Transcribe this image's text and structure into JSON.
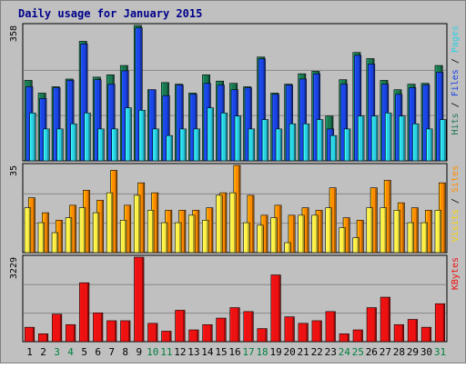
{
  "chart_data": {
    "type": "bar",
    "title": "Daily usage for January 2015",
    "categories": [
      "1",
      "2",
      "3",
      "4",
      "5",
      "6",
      "7",
      "8",
      "9",
      "10",
      "11",
      "12",
      "13",
      "14",
      "15",
      "16",
      "17",
      "18",
      "19",
      "20",
      "21",
      "22",
      "23",
      "24",
      "25",
      "26",
      "27",
      "28",
      "29",
      "30",
      "31"
    ],
    "weekend_days": [
      "3",
      "4",
      "10",
      "11",
      "17",
      "18",
      "24",
      "25",
      "31"
    ],
    "log_scale_top": true,
    "panels": [
      {
        "name": "hits-files-pages",
        "max_label": "358",
        "ylim": [
          0,
          358
        ],
        "series": [
          {
            "name": "Hits",
            "color": "#1a7850",
            "values": [
              32,
              18,
              24,
              34,
              179,
              37,
              41,
              62,
              358,
              21,
              29,
              27,
              18,
              41,
              31,
              28,
              24,
              90,
              18,
              27,
              43,
              48,
              6,
              33,
              110,
              84,
              32,
              21,
              27,
              28,
              62
            ]
          },
          {
            "name": "Files",
            "color": "#1a44e6",
            "values": [
              24,
              14,
              23,
              32,
              160,
              33,
              27,
              49,
              323,
              21,
              16,
              26,
              17,
              28,
              26,
              21,
              23,
              83,
              17,
              26,
              34,
              43,
              3,
              27,
              97,
              66,
              27,
              17,
              23,
              26,
              46
            ]
          },
          {
            "name": "Pages",
            "color": "#2ad0e4",
            "values": [
              7,
              3,
              3,
              4,
              7,
              3,
              3,
              9,
              8,
              3,
              2,
              3,
              3,
              9,
              7,
              6,
              3,
              5,
              3,
              4,
              4,
              5,
              2,
              3,
              6,
              6,
              7,
              6,
              4,
              3,
              5
            ]
          }
        ]
      },
      {
        "name": "visits-sites",
        "max_label": "35",
        "ylim": [
          0,
          35
        ],
        "series": [
          {
            "name": "Visits",
            "color": "#ff8c00",
            "values": [
              22,
              16,
              13,
              19,
              25,
              21,
              33,
              19,
              28,
              24,
              17,
              17,
              17,
              18,
              24,
              35,
              23,
              15,
              19,
              15,
              18,
              17,
              26,
              14,
              13,
              26,
              29,
              20,
              18,
              17,
              28
            ]
          },
          {
            "name": "Sites",
            "color": "#ffee44",
            "values": [
              18,
              12,
              8,
              14,
              18,
              16,
              24,
              13,
              23,
              17,
              12,
              12,
              15,
              13,
              23,
              24,
              12,
              11,
              14,
              4,
              15,
              15,
              18,
              10,
              6,
              18,
              18,
              17,
              12,
              12,
              17
            ]
          }
        ]
      },
      {
        "name": "kbytes",
        "max_label": "3229",
        "ylim": [
          0,
          3229
        ],
        "series": [
          {
            "name": "KBytes",
            "color": "#ee1111",
            "values": [
              550,
              300,
              1050,
              650,
              2250,
              1100,
              800,
              800,
              3229,
              700,
              400,
              1200,
              450,
              650,
              900,
              1300,
              1150,
              500,
              2550,
              950,
              700,
              800,
              1150,
              300,
              450,
              1300,
              1700,
              650,
              850,
              550,
              1450
            ]
          }
        ]
      }
    ]
  }
}
